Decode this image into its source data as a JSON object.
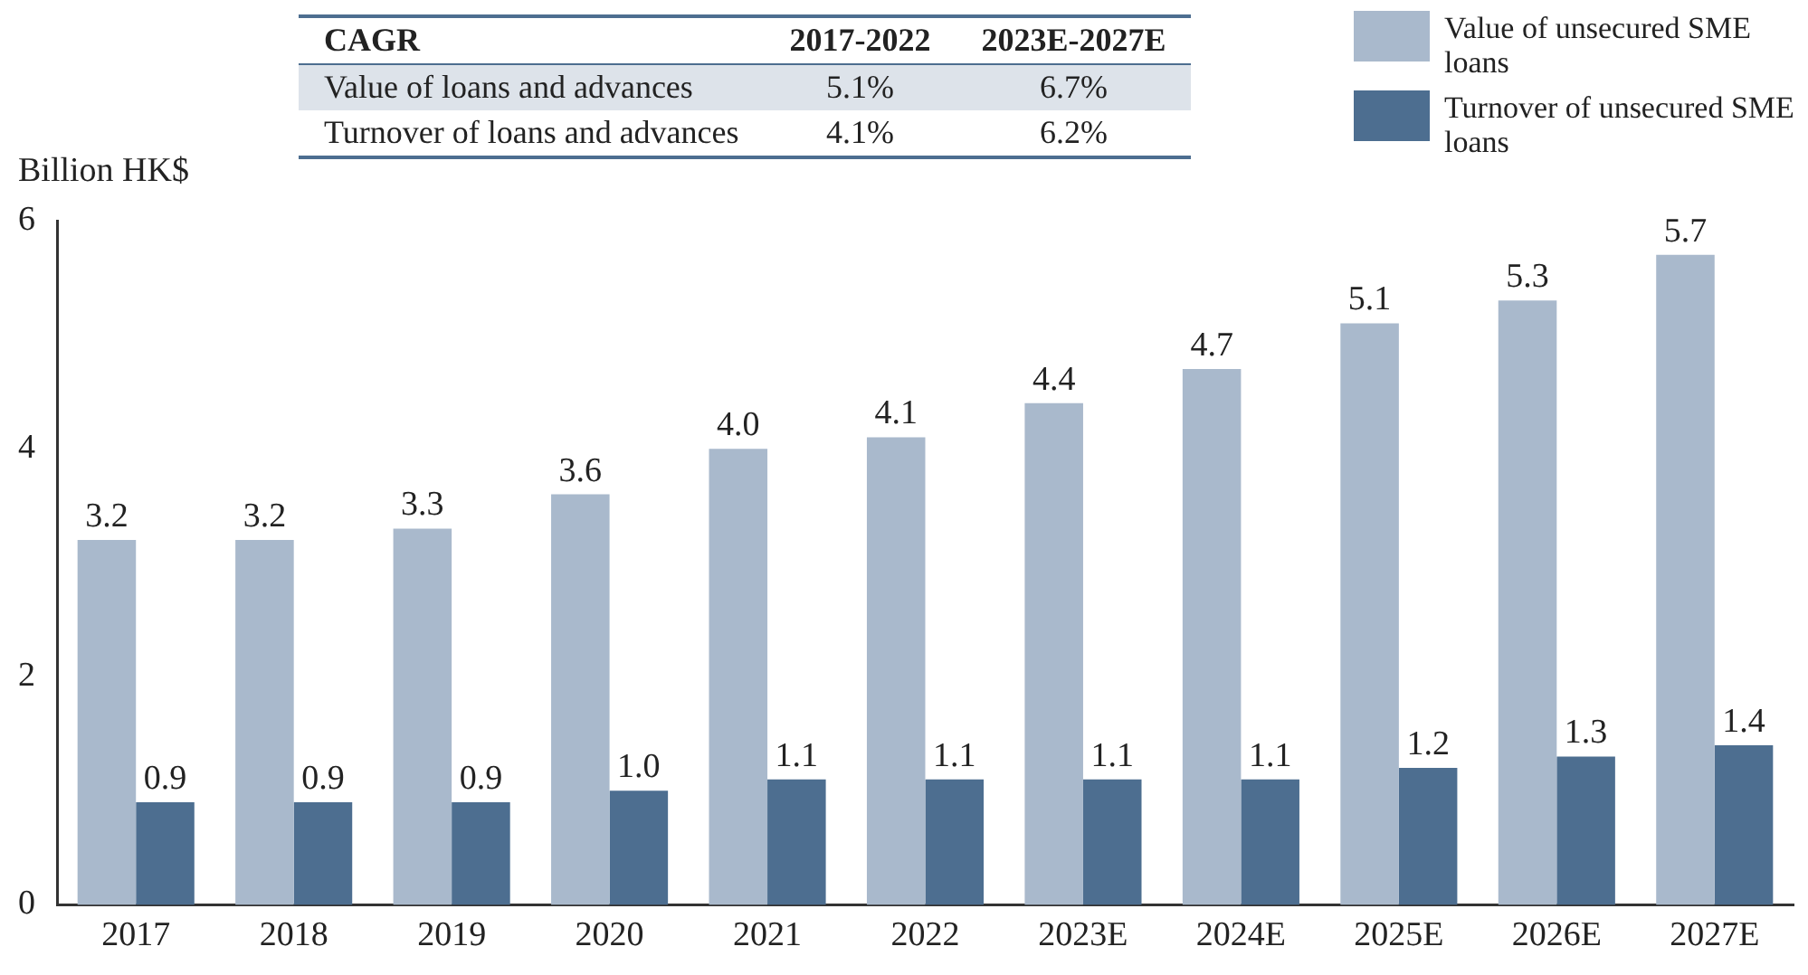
{
  "chart_data": {
    "type": "bar",
    "ylabel": "Billion HK$",
    "categories": [
      "2017",
      "2018",
      "2019",
      "2020",
      "2021",
      "2022",
      "2023E",
      "2024E",
      "2025E",
      "2026E",
      "2027E"
    ],
    "series": [
      {
        "name": "Value of unsecured SME loans",
        "color": "#a9b9cc",
        "values": [
          3.2,
          3.2,
          3.3,
          3.6,
          4.0,
          4.1,
          4.4,
          4.7,
          5.1,
          5.3,
          5.7
        ],
        "value_labels": [
          "3.2",
          "3.2",
          "3.3",
          "3.6",
          "4.0",
          "4.1",
          "4.4",
          "4.7",
          "5.1",
          "5.3",
          "5.7"
        ]
      },
      {
        "name": "Turnover of unsecured SME loans",
        "color": "#4d6e90",
        "values": [
          0.9,
          0.9,
          0.9,
          1.0,
          1.1,
          1.1,
          1.1,
          1.1,
          1.2,
          1.3,
          1.4
        ],
        "value_labels": [
          "0.9",
          "0.9",
          "0.9",
          "1.0",
          "1.1",
          "1.1",
          "1.1",
          "1.1",
          "1.2",
          "1.3",
          "1.4"
        ]
      }
    ],
    "ylim": [
      0,
      6
    ],
    "yticks": [
      0,
      2,
      4,
      6
    ],
    "grid": false,
    "legend": "top right",
    "annotations": [
      "CAGR",
      "2017-2022",
      "2023E-2027E",
      "Value of loans and advances",
      "5.1%",
      "6.7%",
      "Turnover of loans and advances",
      "4.1%",
      "6.2%"
    ]
  }
}
